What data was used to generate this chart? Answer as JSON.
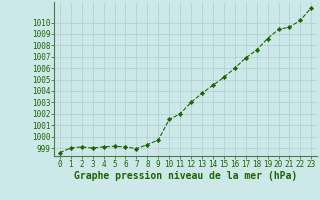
{
  "x": [
    0,
    1,
    2,
    3,
    4,
    5,
    6,
    7,
    8,
    9,
    10,
    11,
    12,
    13,
    14,
    15,
    16,
    17,
    18,
    19,
    20,
    21,
    22,
    23
  ],
  "y": [
    998.6,
    999.0,
    999.1,
    999.0,
    999.1,
    999.15,
    999.1,
    998.95,
    999.3,
    999.7,
    1001.5,
    1002.0,
    1003.0,
    1003.8,
    1004.5,
    1005.2,
    1006.0,
    1006.9,
    1007.6,
    1008.6,
    1009.4,
    1009.6,
    1010.2,
    1011.3
  ],
  "line_color": "#1a6600",
  "marker": "D",
  "marker_size": 2.2,
  "bg_color": "#cce8e8",
  "grid_color": "#b0cccc",
  "xlabel": "Graphe pression niveau de la mer (hPa)",
  "xlabel_fontsize": 7,
  "ylabel_ticks": [
    999,
    1000,
    1001,
    1002,
    1003,
    1004,
    1005,
    1006,
    1007,
    1008,
    1009,
    1010
  ],
  "ylim": [
    998.3,
    1011.8
  ],
  "xlim": [
    -0.5,
    23.5
  ],
  "tick_fontsize": 5.5,
  "linewidth": 0.8
}
